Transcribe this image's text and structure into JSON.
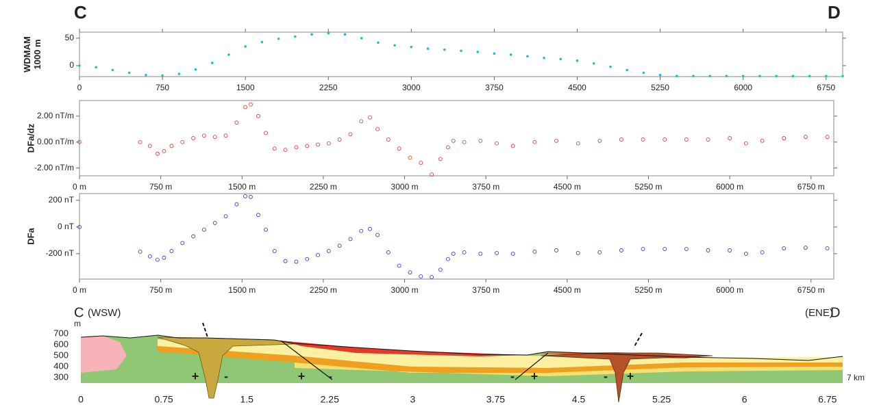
{
  "header": {
    "left": "C",
    "right": "D"
  },
  "chart_data": [
    {
      "type": "scatter",
      "ylabel": [
        "WDMAM",
        "1000 m"
      ],
      "marker": "dot",
      "color": "#1fbcd4",
      "xlim": [
        0,
        6900
      ],
      "ylim": [
        -20,
        61
      ],
      "xticks": [
        0,
        750,
        1500,
        2250,
        3000,
        3750,
        4500,
        5250,
        6000,
        6750
      ],
      "yticks": [
        0,
        50
      ],
      "top_ticks": true,
      "x": [
        0,
        150,
        300,
        450,
        600,
        750,
        900,
        1050,
        1200,
        1350,
        1500,
        1650,
        1800,
        1950,
        2100,
        2250,
        2400,
        2550,
        2700,
        2850,
        3000,
        3150,
        3300,
        3450,
        3600,
        3750,
        3900,
        4050,
        4200,
        4350,
        4500,
        4650,
        4800,
        4950,
        5100,
        5250,
        5400,
        5550,
        5700,
        5850,
        6000,
        6150,
        6300,
        6450,
        6600,
        6750,
        6900
      ],
      "values": [
        0,
        -3,
        -8,
        -13,
        -17,
        -18,
        -15,
        -7,
        5,
        20,
        35,
        43,
        49,
        53,
        57,
        59,
        57,
        50,
        42,
        37,
        34,
        31,
        29,
        27,
        25,
        22,
        20,
        17,
        14,
        12,
        9,
        4,
        -2,
        -8,
        -13,
        -17,
        -19,
        -19,
        -19,
        -19,
        -19,
        -19,
        -19,
        -19,
        -19,
        -19,
        -19
      ]
    },
    {
      "type": "scatter",
      "ylabel": [
        "DFa/dz"
      ],
      "marker": "circle",
      "color": "#e0403a",
      "xlim": [
        0,
        6960
      ],
      "ylim": [
        -2.6,
        3.2
      ],
      "xticks": [
        {
          "value": 0,
          "label": "0 m"
        },
        {
          "value": 750,
          "label": "750 m"
        },
        {
          "value": 1500,
          "label": "1500 m"
        },
        {
          "value": 2250,
          "label": "2250 m"
        },
        {
          "value": 3000,
          "label": "3000 m"
        },
        {
          "value": 3750,
          "label": "3750 m"
        },
        {
          "value": 4500,
          "label": "4500 m"
        },
        {
          "value": 5250,
          "label": "5250 m"
        },
        {
          "value": 6000,
          "label": "6000 m"
        },
        {
          "value": 6750,
          "label": "6750 m"
        }
      ],
      "yticks": [
        {
          "value": -2,
          "label": "-2.00 nT/m"
        },
        {
          "value": 0,
          "label": "0.00 nT/m"
        },
        {
          "value": 2,
          "label": "2.00 nT/m"
        }
      ],
      "x": [
        0,
        560,
        650,
        720,
        780,
        850,
        950,
        1050,
        1150,
        1250,
        1350,
        1450,
        1530,
        1580,
        1650,
        1720,
        1800,
        1900,
        2000,
        2100,
        2200,
        2300,
        2400,
        2500,
        2600,
        2680,
        2750,
        2850,
        2950,
        3050,
        3150,
        3250,
        3330,
        3400,
        3450,
        3550,
        3700,
        3850,
        4000,
        4200,
        4400,
        4600,
        4800,
        5000,
        5200,
        5400,
        5600,
        5800,
        6000,
        6150,
        6300,
        6500,
        6700,
        6900
      ],
      "values": [
        0,
        0,
        -0.3,
        -0.9,
        -0.7,
        -0.3,
        0,
        0.3,
        0.5,
        0.4,
        0.5,
        1.5,
        2.7,
        2.9,
        2.0,
        0.7,
        -0.5,
        -0.6,
        -0.4,
        -0.3,
        -0.2,
        -0.1,
        0.2,
        0.6,
        1.6,
        1.9,
        1.0,
        0.2,
        -0.5,
        -1.2,
        -1.6,
        -2.5,
        -1.3,
        -0.4,
        0.1,
        0,
        0.1,
        -0.1,
        -0.3,
        0,
        0.1,
        -0.1,
        0.1,
        0.2,
        0.2,
        0.2,
        0.2,
        0.2,
        0.3,
        -0.1,
        0.1,
        0.3,
        0.4,
        0.4
      ]
    },
    {
      "type": "scatter",
      "ylabel": [
        "DFa"
      ],
      "marker": "circle",
      "color": "#3b3bd6",
      "xlim": [
        0,
        6960
      ],
      "ylim": [
        -390,
        250
      ],
      "xticks": [
        {
          "value": 0,
          "label": "0 m"
        },
        {
          "value": 750,
          "label": "750 m"
        },
        {
          "value": 1500,
          "label": "1500 m"
        },
        {
          "value": 2250,
          "label": "2250 m"
        },
        {
          "value": 3000,
          "label": "3000 m"
        },
        {
          "value": 3750,
          "label": "3750 m"
        },
        {
          "value": 4500,
          "label": "4500 m"
        },
        {
          "value": 5250,
          "label": "5250 m"
        },
        {
          "value": 6000,
          "label": "6000 m"
        },
        {
          "value": 6750,
          "label": "6750 m"
        }
      ],
      "yticks": [
        {
          "value": -200,
          "label": "-200 nT"
        },
        {
          "value": 0,
          "label": "0 nT"
        },
        {
          "value": 200,
          "label": "200 nT"
        }
      ],
      "x": [
        0,
        560,
        650,
        720,
        780,
        850,
        950,
        1050,
        1150,
        1250,
        1350,
        1450,
        1530,
        1580,
        1650,
        1720,
        1800,
        1900,
        2000,
        2100,
        2200,
        2300,
        2400,
        2500,
        2600,
        2680,
        2750,
        2850,
        2950,
        3050,
        3150,
        3250,
        3330,
        3400,
        3450,
        3550,
        3700,
        3850,
        4000,
        4200,
        4400,
        4600,
        4800,
        5000,
        5200,
        5400,
        5600,
        5800,
        6000,
        6150,
        6300,
        6500,
        6700,
        6900
      ],
      "values": [
        0,
        -185,
        -220,
        -245,
        -230,
        -180,
        -120,
        -70,
        -20,
        30,
        80,
        170,
        230,
        225,
        90,
        -20,
        -180,
        -255,
        -260,
        -240,
        -210,
        -180,
        -140,
        -90,
        -30,
        -15,
        -60,
        -190,
        -290,
        -340,
        -370,
        -375,
        -320,
        -240,
        -200,
        -190,
        -200,
        -195,
        -200,
        -185,
        -175,
        -195,
        -190,
        -175,
        -165,
        -165,
        -165,
        -175,
        -175,
        -200,
        -190,
        -160,
        -155,
        -160
      ]
    }
  ],
  "cross_section": {
    "left_label": "C",
    "left_dir": "(WSW)",
    "right_dir": "(ENE)",
    "right_label": "D",
    "yunit": "m",
    "xunit": "7 km",
    "xlim": [
      0,
      6.9
    ],
    "ylim": [
      250,
      780
    ],
    "xticks": [
      0,
      0.75,
      1.5,
      2.25,
      3,
      3.75,
      4.5,
      5.25,
      6,
      6.75
    ],
    "yticks": [
      300,
      400,
      500,
      600,
      700
    ],
    "signs": [
      "+",
      "-",
      "+",
      "-",
      "-",
      "+",
      "-",
      "+"
    ]
  }
}
